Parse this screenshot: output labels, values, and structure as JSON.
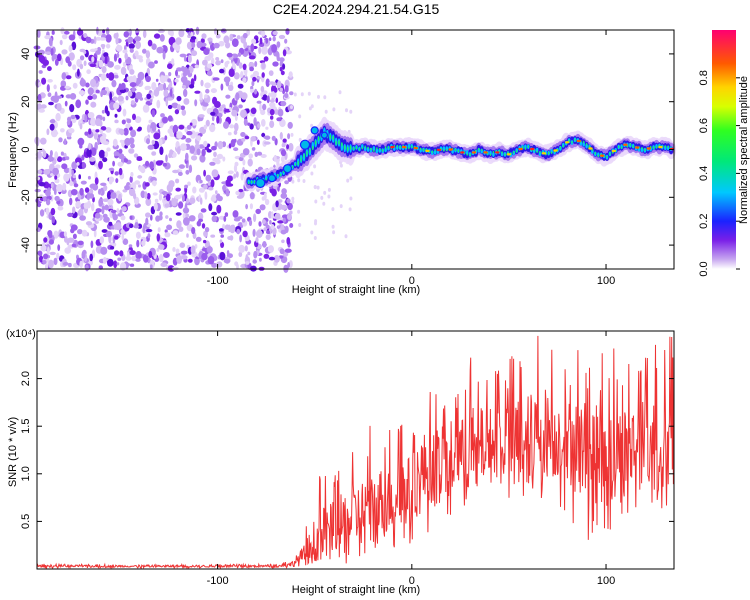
{
  "title": "C2E4.2024.294.21.54.G15",
  "chart_data": [
    {
      "type": "heatmap",
      "xlabel": "Height of straight line (km)",
      "ylabel": "Frequency (Hz)",
      "xlim": [
        -193,
        135
      ],
      "ylim": [
        -50,
        50
      ],
      "x_ticks": [
        -100,
        0,
        100
      ],
      "y_ticks": [
        -40,
        -20,
        0,
        20,
        40
      ],
      "noise_region_x": [
        -193,
        -62
      ],
      "track": {
        "x": [
          -85,
          -80,
          -75,
          -70,
          -65,
          -60,
          -55,
          -50,
          -45,
          -40,
          -35,
          -30,
          -25,
          -20,
          -15,
          -10,
          -5,
          0,
          5,
          10,
          15,
          20,
          25,
          30,
          35,
          40,
          45,
          50,
          55,
          60,
          65,
          70,
          75,
          80,
          85,
          90,
          95,
          100,
          105,
          110,
          115,
          120,
          125,
          130,
          135
        ],
        "y": [
          -14,
          -13,
          -12,
          -11,
          -9,
          -6,
          -3,
          2,
          7,
          4,
          1,
          0,
          1,
          0,
          0,
          1,
          1,
          1,
          0,
          -1,
          0,
          0,
          -1,
          -2,
          0,
          -2,
          -1,
          -2,
          0,
          1,
          -1,
          -2,
          0,
          3,
          4,
          2,
          -2,
          -3,
          0,
          2,
          1,
          0,
          1,
          1,
          0
        ]
      },
      "colorbar": {
        "label": "Normalized spectral amplitude",
        "range": [
          0,
          1
        ],
        "ticks": [
          "0.0",
          "0.2",
          "0.4",
          "0.6",
          "0.8"
        ]
      }
    },
    {
      "type": "line",
      "xlabel": "Height of straight line (km)",
      "ylabel": "SNR (10 * v/v)",
      "y_multiplier": "(x10⁴)",
      "xlim": [
        -193,
        135
      ],
      "ylim": [
        0,
        2.5
      ],
      "x_ticks": [
        -100,
        0,
        100
      ],
      "y_ticks": [
        "0.5",
        "1.0",
        "1.5",
        "2.0"
      ],
      "color": "#ee3333",
      "series": [
        {
          "x": [
            -193,
            -180,
            -160,
            -140,
            -120,
            -100,
            -80,
            -70,
            -62,
            -55,
            -50,
            -45,
            -40,
            -35,
            -30,
            -25,
            -20,
            -15,
            -10,
            -5,
            0,
            5,
            10,
            15,
            20,
            25,
            30,
            35,
            40,
            45,
            50,
            55,
            60,
            65,
            70,
            75,
            80,
            85,
            90,
            95,
            100,
            105,
            110,
            115,
            120,
            125,
            130,
            135
          ],
          "values": [
            0.03,
            0.03,
            0.03,
            0.03,
            0.03,
            0.03,
            0.03,
            0.03,
            0.05,
            0.15,
            0.3,
            0.4,
            0.45,
            0.5,
            0.55,
            0.6,
            0.62,
            0.7,
            0.75,
            0.8,
            0.85,
            1.0,
            1.05,
            1.1,
            1.15,
            1.2,
            1.25,
            1.3,
            1.3,
            1.35,
            1.35,
            1.4,
            1.4,
            1.4,
            1.45,
            1.4,
            1.35,
            1.3,
            1.25,
            1.2,
            1.2,
            1.15,
            1.25,
            1.3,
            1.3,
            1.3,
            1.35,
            1.3
          ],
          "max_values": [
            0.05,
            0.05,
            0.05,
            0.05,
            0.05,
            0.05,
            0.05,
            0.05,
            0.1,
            0.45,
            0.9,
            1.05,
            1.0,
            1.2,
            1.3,
            1.35,
            1.6,
            1.55,
            1.45,
            1.65,
            1.45,
            1.95,
            2.0,
            1.85,
            2.05,
            1.9,
            2.3,
            2.05,
            2.1,
            2.15,
            2.2,
            2.35,
            2.35,
            2.5,
            2.5,
            2.3,
            2.3,
            2.35,
            2.2,
            2.2,
            2.35,
            2.35,
            2.3,
            2.2,
            2.3,
            2.5,
            2.5,
            2.5
          ],
          "min_values": [
            0.01,
            0.01,
            0.01,
            0.01,
            0.01,
            0.01,
            0.01,
            0.01,
            0.01,
            0.02,
            0.05,
            0.05,
            0.05,
            0.05,
            0.05,
            0.05,
            0.1,
            0.1,
            0.15,
            0.2,
            0.25,
            0.35,
            0.4,
            0.45,
            0.5,
            0.6,
            0.6,
            0.6,
            0.65,
            0.6,
            0.55,
            0.7,
            0.65,
            0.7,
            0.7,
            0.65,
            0.6,
            0.4,
            0.3,
            0.3,
            0.3,
            0.4,
            0.5,
            0.55,
            0.55,
            0.6,
            0.65,
            0.5
          ]
        }
      ]
    }
  ]
}
